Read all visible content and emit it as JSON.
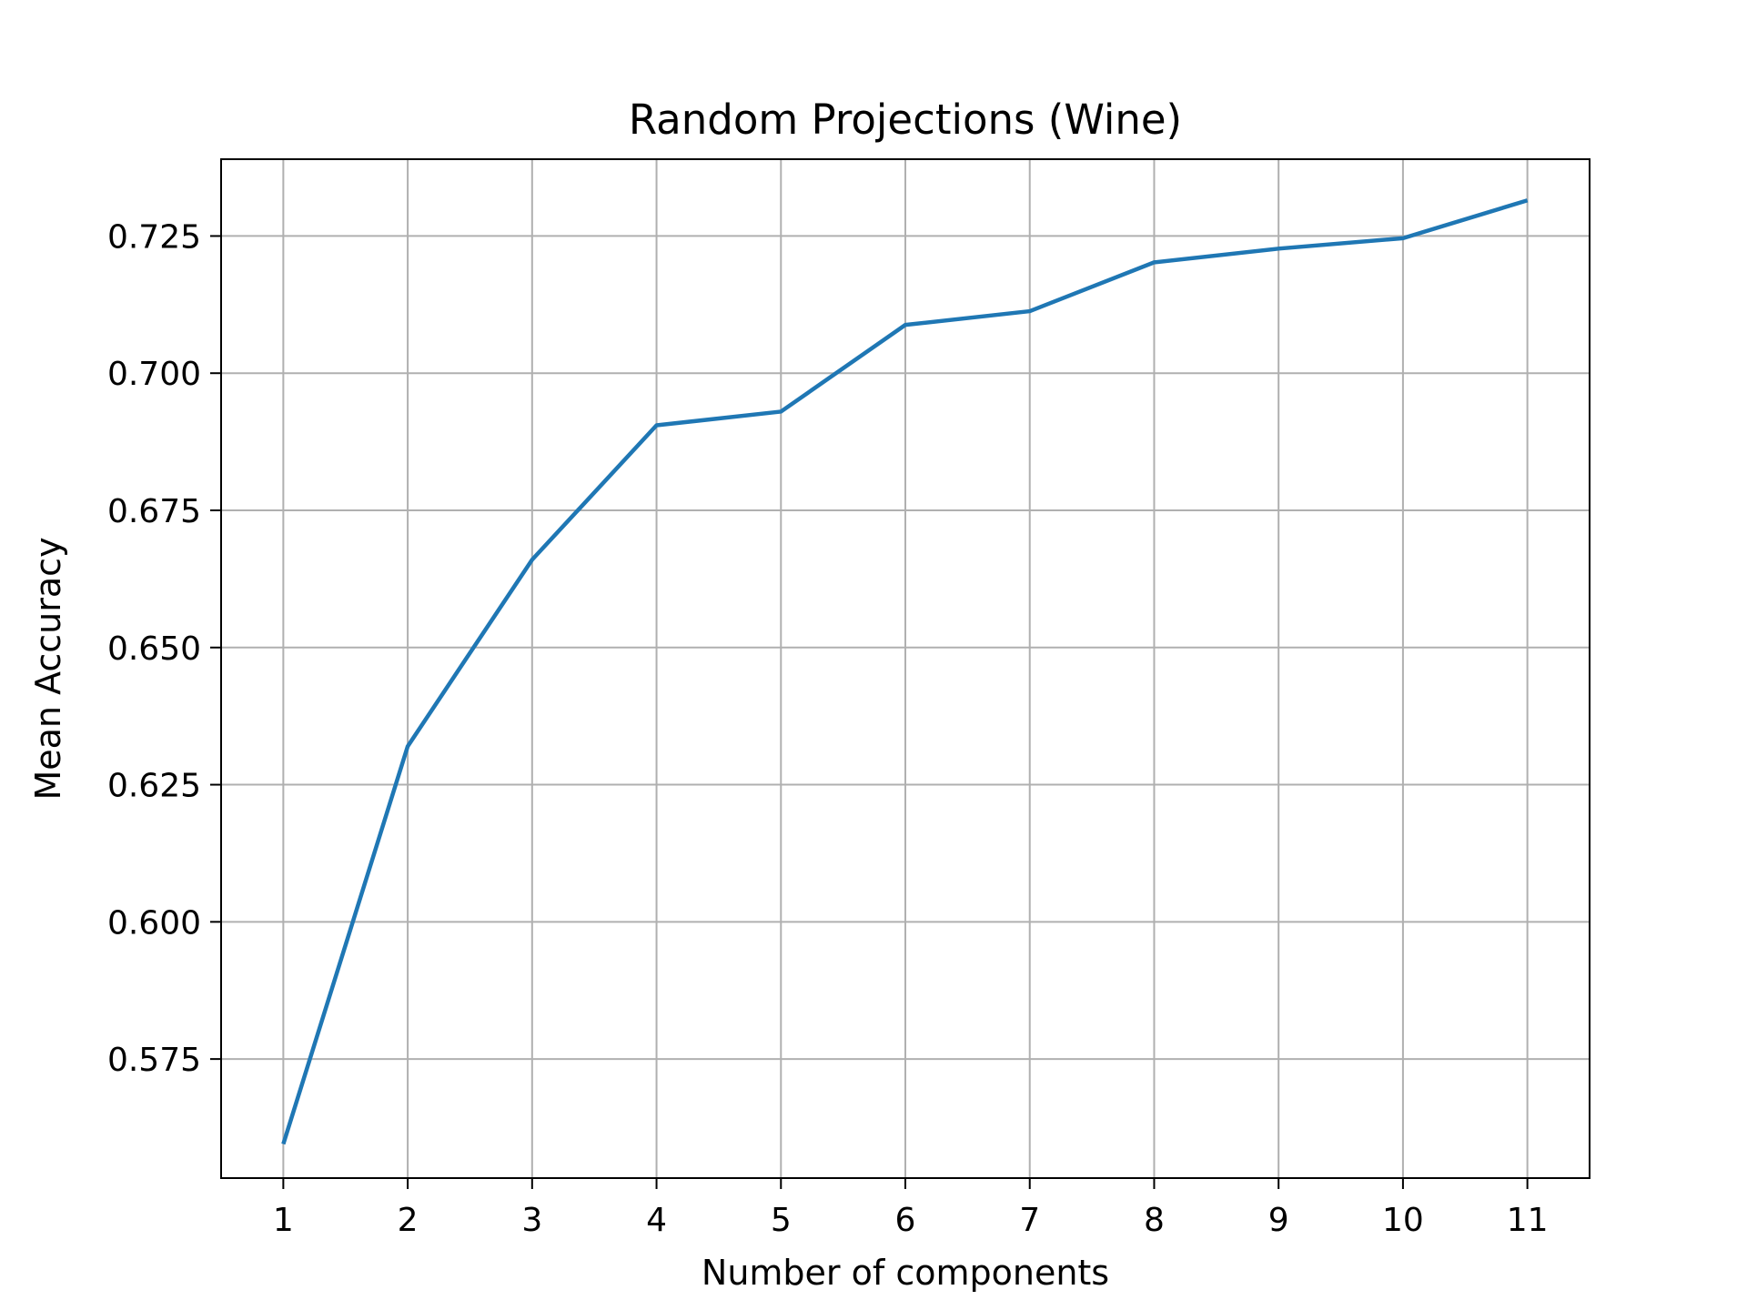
{
  "chart_data": {
    "type": "line",
    "title": "Random Projections (Wine)",
    "xlabel": "Number of components",
    "ylabel": "Mean Accuracy",
    "x": [
      1,
      2,
      3,
      4,
      5,
      6,
      7,
      8,
      9,
      10,
      11
    ],
    "series": [
      {
        "values": [
          0.5595,
          0.632,
          0.666,
          0.6905,
          0.693,
          0.7088,
          0.7113,
          0.7202,
          0.7227,
          0.7246,
          0.7315
        ],
        "color": "#1f77b4"
      }
    ],
    "xticks": [
      "1",
      "2",
      "3",
      "4",
      "5",
      "6",
      "7",
      "8",
      "9",
      "10",
      "11"
    ],
    "yticks": [
      {
        "value": 0.575,
        "label": "0.575"
      },
      {
        "value": 0.6,
        "label": "0.600"
      },
      {
        "value": 0.625,
        "label": "0.625"
      },
      {
        "value": 0.65,
        "label": "0.650"
      },
      {
        "value": 0.675,
        "label": "0.675"
      },
      {
        "value": 0.7,
        "label": "0.700"
      },
      {
        "value": 0.725,
        "label": "0.725"
      }
    ],
    "xlim": [
      0.5,
      11.5
    ],
    "ylim": [
      0.5533,
      0.739
    ],
    "grid": true,
    "grid_color": "#b0b0b0"
  }
}
